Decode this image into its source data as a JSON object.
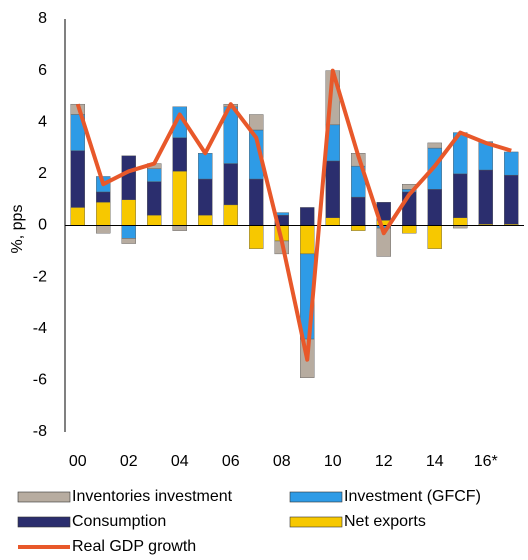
{
  "chart_data": {
    "type": "bar",
    "y_label": "%, pps",
    "categories": [
      "00",
      null,
      "02",
      null,
      "04",
      null,
      "06",
      null,
      "08",
      null,
      "10",
      null,
      "12",
      null,
      "14",
      null,
      "16*",
      null
    ],
    "ylim": [
      -8,
      8
    ],
    "yticks": [
      -8,
      -6,
      -4,
      -2,
      0,
      2,
      4,
      6,
      8
    ],
    "grid": false,
    "series": [
      {
        "name": "Inventories investment",
        "color": "#b7aca0",
        "values": [
          0.4,
          -0.3,
          -0.2,
          0.2,
          -0.2,
          0,
          0.1,
          0.6,
          -0.5,
          -1.5,
          2.1,
          0.5,
          -1.1,
          0.2,
          0.2,
          -0.1,
          0,
          0
        ]
      },
      {
        "name": "Investment (GFCF)",
        "color": "#2e9be6",
        "values": [
          1.4,
          0.6,
          -0.5,
          0.5,
          1.2,
          1.0,
          2.2,
          1.9,
          0.1,
          -3.3,
          1.4,
          1.2,
          -0.1,
          0.1,
          1.6,
          1.6,
          1.1,
          0.9
        ]
      },
      {
        "name": "Consumption",
        "color": "#2b2e6e",
        "values": [
          2.2,
          0.4,
          1.7,
          1.3,
          1.3,
          1.4,
          1.6,
          1.8,
          0.4,
          0.7,
          2.2,
          1.1,
          0.7,
          1.3,
          1.4,
          1.7,
          2.1,
          1.9
        ]
      },
      {
        "name": "Net exports",
        "color": "#f7c800",
        "values": [
          0.7,
          0.9,
          1.0,
          0.4,
          2.1,
          0.4,
          0.8,
          -0.9,
          -0.6,
          -1.1,
          0.3,
          -0.2,
          0.2,
          -0.3,
          -0.9,
          0.3,
          0.05,
          0.05
        ]
      },
      {
        "name": "Real GDP growth",
        "color": "#e8582a",
        "type": "line",
        "values": [
          4.7,
          1.6,
          2.1,
          2.4,
          4.3,
          2.8,
          4.7,
          3.4,
          -0.6,
          -5.2,
          6.0,
          2.7,
          -0.3,
          1.2,
          2.3,
          3.6,
          3.2,
          2.9
        ]
      }
    ]
  }
}
